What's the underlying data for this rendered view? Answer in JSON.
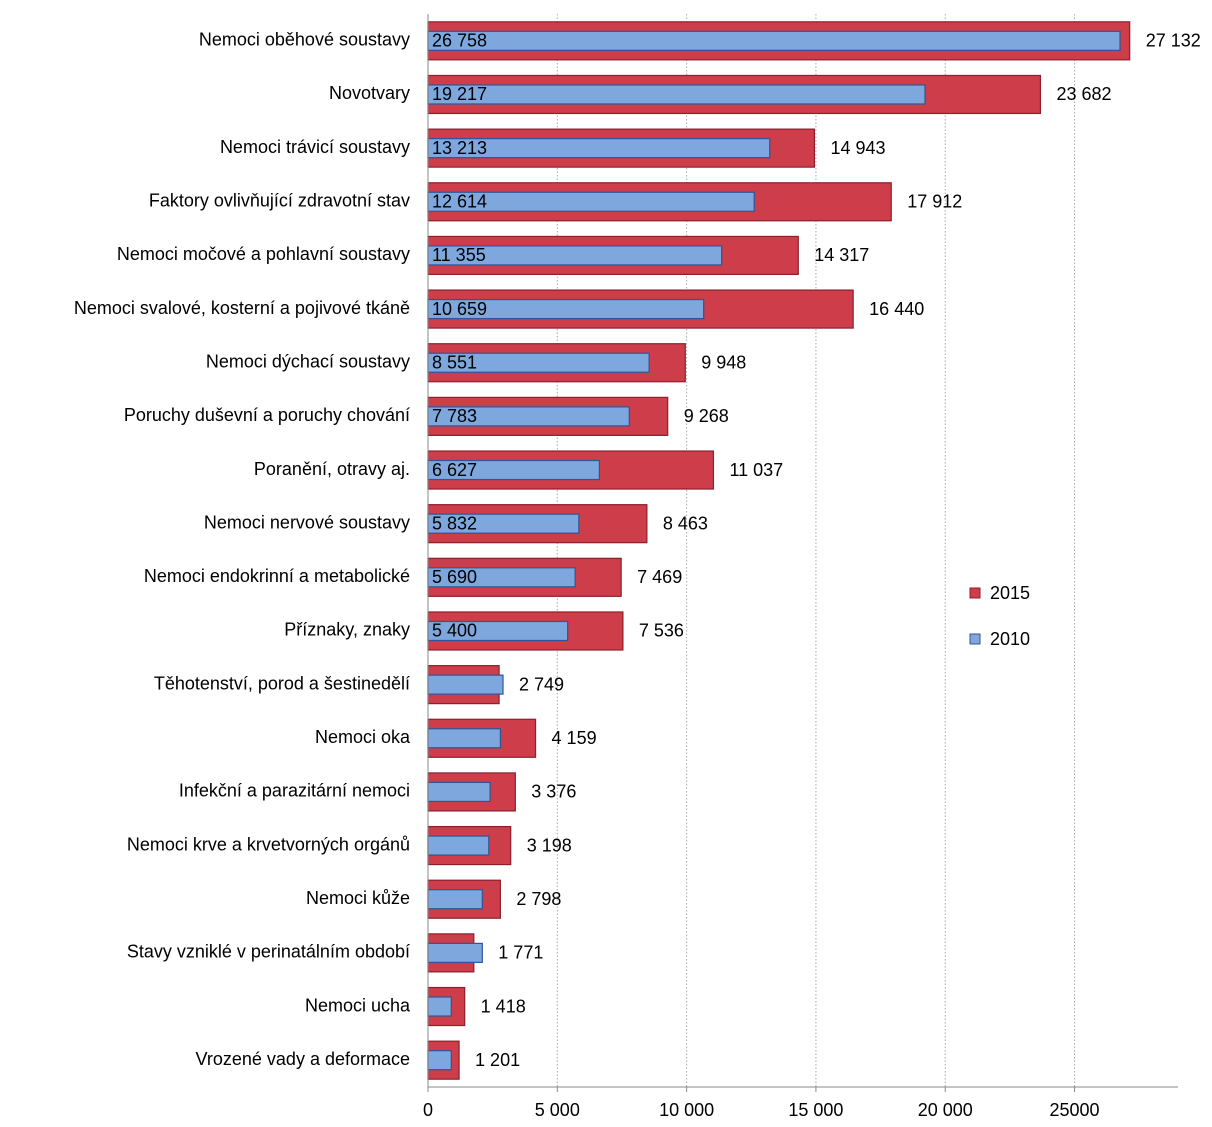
{
  "chart_data": {
    "type": "overlapped-bar",
    "categories": [
      "Nemoci oběhové soustavy",
      "Novotvary",
      "Nemoci trávicí soustavy",
      "Faktory ovlivňující zdravotní stav",
      "Nemoci močové a pohlavní soustavy",
      "Nemoci svalové, kosterní a pojivové tkáně",
      "Nemoci dýchací soustavy",
      "Poruchy duševní a poruchy chování",
      "Poranění, otravy aj.",
      "Nemoci nervové soustavy",
      "Nemoci endokrinní a metabolické",
      "Příznaky, znaky",
      "Těhotenství, porod a šestinedělí",
      "Nemoci oka",
      "Infekční a parazitární nemoci",
      "Nemoci krve a krvetvorných orgánů",
      "Nemoci kůže",
      "Stavy vzniklé v perinatálním období",
      "Nemoci ucha",
      "Vrozené vady a deformace"
    ],
    "series": [
      {
        "name": "2015",
        "color": "#cd3d4a",
        "values": [
          27132,
          23682,
          14943,
          17912,
          14317,
          16440,
          9948,
          9268,
          11037,
          8463,
          7469,
          7536,
          2749,
          4159,
          3376,
          3198,
          2798,
          1771,
          1418,
          1201
        ],
        "value_labels": [
          "27 132",
          "23 682",
          "14 943",
          "17 912",
          "14 317",
          "16 440",
          "9 948",
          "9 268",
          "11 037",
          "8 463",
          "7 469",
          "7 536",
          "2 749",
          "4 159",
          "3 376",
          "3 198",
          "2 798",
          "1 771",
          "1 418",
          "1 201"
        ]
      },
      {
        "name": "2010",
        "color": "#7ea7dd",
        "values": [
          26758,
          19217,
          13213,
          12614,
          11355,
          10659,
          8551,
          7783,
          6627,
          5832,
          5690,
          5400,
          2900,
          2800,
          2400,
          2350,
          2100,
          2100,
          900,
          900
        ],
        "value_labels": [
          "26 758",
          "19 217",
          "13 213",
          "12 614",
          "11 355",
          "10 659",
          "8 551",
          "7 783",
          "6 627",
          "5 832",
          "5 690",
          "5 400",
          null,
          null,
          null,
          null,
          null,
          null,
          null,
          null
        ]
      }
    ],
    "xlim": [
      0,
      29000
    ],
    "xticks": [
      0,
      {
        "value": 5000,
        "label": "5 000"
      },
      {
        "value": 10000,
        "label": "10 000"
      },
      {
        "value": 15000,
        "label": "15 000"
      },
      {
        "value": 20000,
        "label": "20 000"
      },
      25000
    ],
    "grid": true,
    "legend": "right"
  }
}
